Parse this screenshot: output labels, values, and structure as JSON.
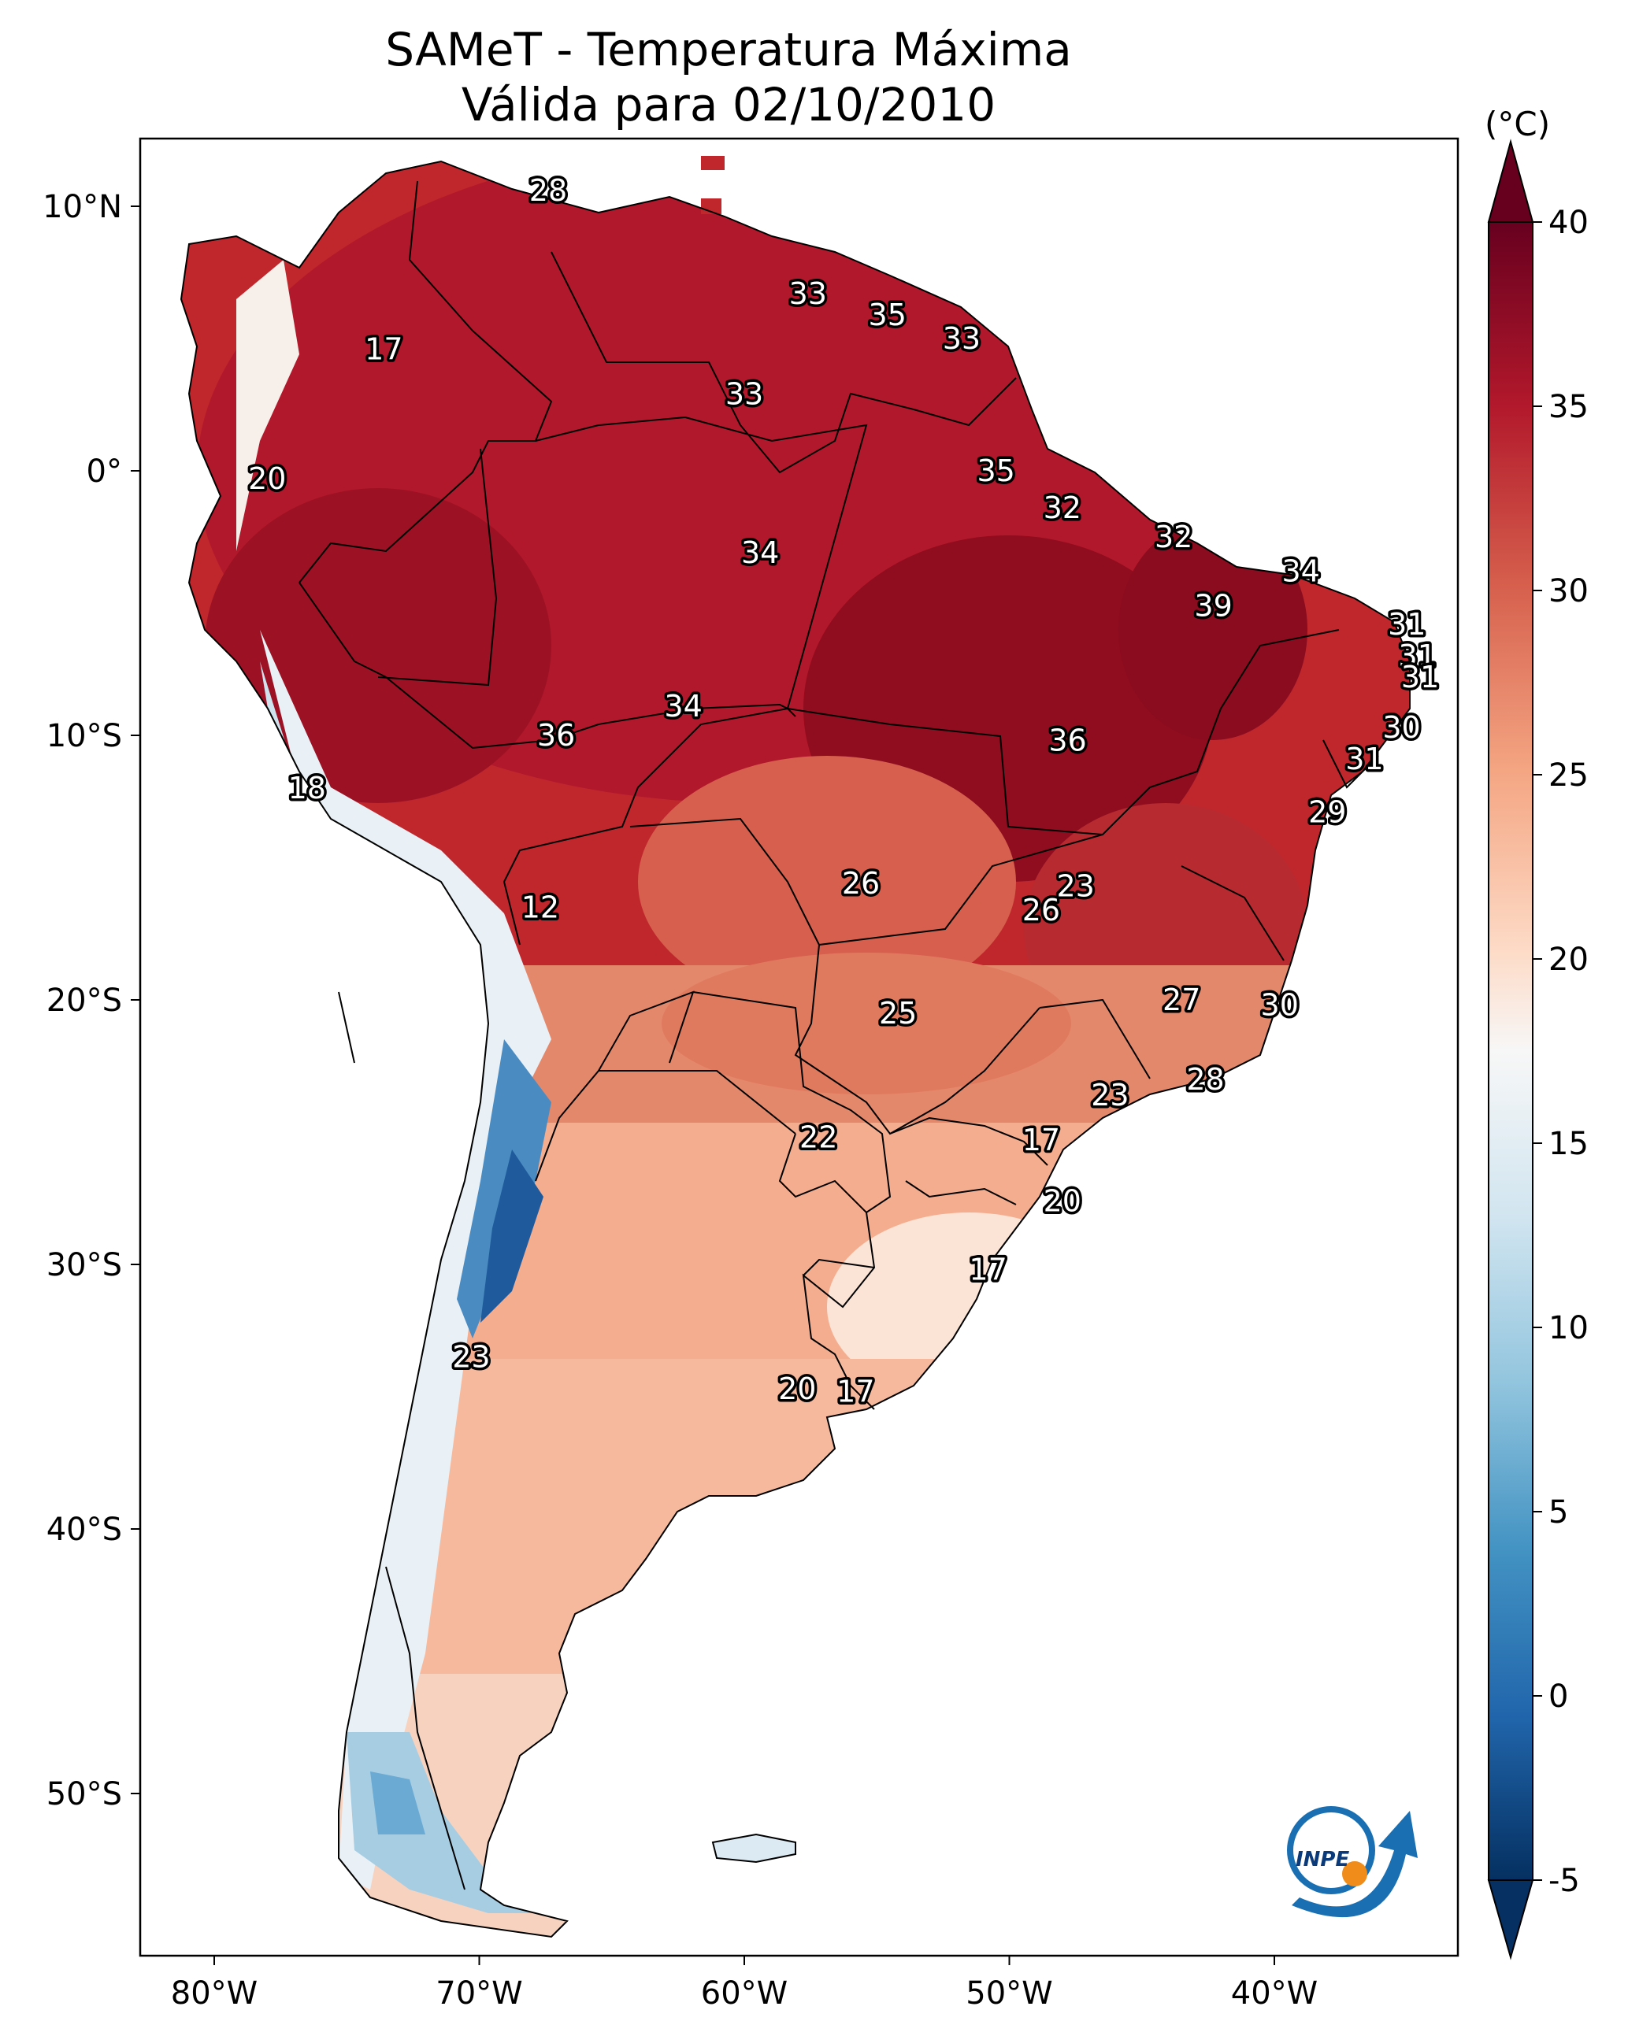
{
  "title": {
    "line1": "SAMeT - Temperatura Máxima",
    "line2": "Válida para 02/10/2010"
  },
  "map": {
    "lon_ticks": [
      "80°W",
      "70°W",
      "60°W",
      "50°W",
      "40°W"
    ],
    "lat_ticks": [
      "10°N",
      "0°",
      "10°S",
      "20°S",
      "30°S",
      "40°S",
      "50°S"
    ]
  },
  "colorbar": {
    "units": "(°C)",
    "ticks": [
      "40",
      "35",
      "30",
      "25",
      "20",
      "15",
      "10",
      "5",
      "0",
      "-5"
    ],
    "colors": {
      "max": "#67001f",
      "hot": "#b2182b",
      "warm": "#ef8a62",
      "mid": "#f7f7f7",
      "cool": "#67a9cf",
      "cold": "#2166ac",
      "min": "#053061"
    }
  },
  "contour_labels": [
    {
      "text": "28",
      "lon": -67.4,
      "lat": 10.6
    },
    {
      "text": "17",
      "lon": -73.6,
      "lat": 4.6
    },
    {
      "text": "33",
      "lon": -57.6,
      "lat": 6.7
    },
    {
      "text": "35",
      "lon": -54.6,
      "lat": 5.9
    },
    {
      "text": "33",
      "lon": -51.8,
      "lat": 5.0
    },
    {
      "text": "33",
      "lon": -60.0,
      "lat": 2.9
    },
    {
      "text": "20",
      "lon": -78.0,
      "lat": -0.3
    },
    {
      "text": "35",
      "lon": -50.5,
      "lat": 0.0
    },
    {
      "text": "32",
      "lon": -48.0,
      "lat": -1.4
    },
    {
      "text": "32",
      "lon": -43.8,
      "lat": -2.5
    },
    {
      "text": "34",
      "lon": -59.4,
      "lat": -3.1
    },
    {
      "text": "34",
      "lon": -39.0,
      "lat": -3.8
    },
    {
      "text": "39",
      "lon": -42.3,
      "lat": -5.1
    },
    {
      "text": "31",
      "lon": -35.0,
      "lat": -5.8
    },
    {
      "text": "31",
      "lon": -34.6,
      "lat": -7.0
    },
    {
      "text": "31",
      "lon": -34.5,
      "lat": -7.8
    },
    {
      "text": "34",
      "lon": -62.3,
      "lat": -8.9
    },
    {
      "text": "30",
      "lon": -35.2,
      "lat": -9.7
    },
    {
      "text": "36",
      "lon": -67.1,
      "lat": -10.0
    },
    {
      "text": "36",
      "lon": -47.8,
      "lat": -10.2
    },
    {
      "text": "31",
      "lon": -36.6,
      "lat": -10.9
    },
    {
      "text": "18",
      "lon": -76.5,
      "lat": -12.0
    },
    {
      "text": "29",
      "lon": -38.0,
      "lat": -12.9
    },
    {
      "text": "23",
      "lon": -47.5,
      "lat": -15.7
    },
    {
      "text": "26",
      "lon": -55.6,
      "lat": -15.6
    },
    {
      "text": "26",
      "lon": -48.8,
      "lat": -16.6
    },
    {
      "text": "12",
      "lon": -67.7,
      "lat": -16.5
    },
    {
      "text": "27",
      "lon": -43.5,
      "lat": -20.0
    },
    {
      "text": "30",
      "lon": -39.8,
      "lat": -20.2
    },
    {
      "text": "25",
      "lon": -54.2,
      "lat": -20.5
    },
    {
      "text": "28",
      "lon": -42.6,
      "lat": -23.0
    },
    {
      "text": "23",
      "lon": -46.2,
      "lat": -23.6
    },
    {
      "text": "22",
      "lon": -57.2,
      "lat": -25.2
    },
    {
      "text": "17",
      "lon": -48.8,
      "lat": -25.3
    },
    {
      "text": "20",
      "lon": -48.0,
      "lat": -27.6
    },
    {
      "text": "17",
      "lon": -50.8,
      "lat": -30.2
    },
    {
      "text": "23",
      "lon": -70.3,
      "lat": -33.5
    },
    {
      "text": "20",
      "lon": -58.0,
      "lat": -34.7
    },
    {
      "text": "17",
      "lon": -55.8,
      "lat": -34.8
    }
  ]
}
